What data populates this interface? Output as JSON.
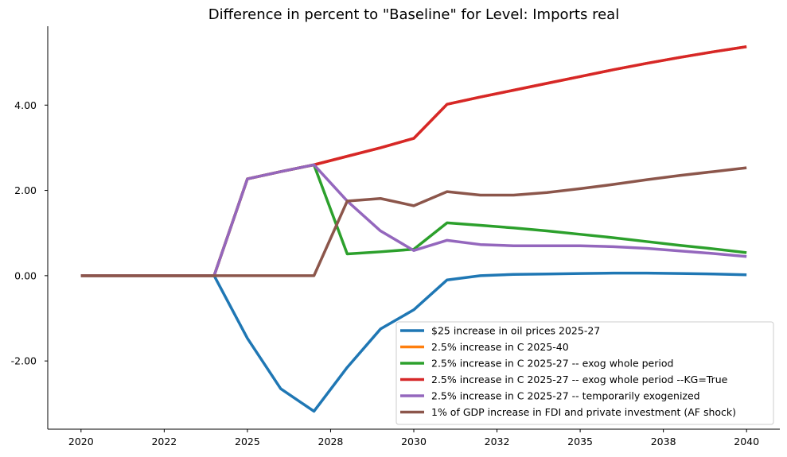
{
  "chart_data": {
    "type": "line",
    "title": "Difference in percent to \"Baseline\" for Level: Imports real",
    "xlabel": "",
    "ylabel": "",
    "x": [
      2020,
      2021,
      2022,
      2023,
      2024,
      2025,
      2026,
      2027,
      2028,
      2029,
      2030,
      2031,
      2032,
      2033,
      2034,
      2035,
      2036,
      2037,
      2038,
      2039,
      2040
    ],
    "xlim": [
      2019,
      2041
    ],
    "ylim": [
      -3.6,
      5.85
    ],
    "x_ticks": [
      {
        "value": 2020,
        "label": "2020"
      },
      {
        "value": 2022.5,
        "label": "2022"
      },
      {
        "value": 2025,
        "label": "2025"
      },
      {
        "value": 2027.5,
        "label": "2028"
      },
      {
        "value": 2030,
        "label": "2030"
      },
      {
        "value": 2032.5,
        "label": "2032"
      },
      {
        "value": 2035,
        "label": "2035"
      },
      {
        "value": 2037.5,
        "label": "2038"
      },
      {
        "value": 2040,
        "label": "2040"
      }
    ],
    "y_ticks": [
      {
        "value": -2,
        "label": "-2.00"
      },
      {
        "value": 0,
        "label": "0.00"
      },
      {
        "value": 2,
        "label": "2.00"
      },
      {
        "value": 4,
        "label": "4.00"
      }
    ],
    "grid": false,
    "legend_position": "bottom-right",
    "series": [
      {
        "name": "$25 increase in oil prices 2025-27",
        "color": "#1f77b4",
        "values": [
          0,
          0,
          0,
          0,
          0,
          -1.47,
          -2.65,
          -3.18,
          -2.15,
          -1.25,
          -0.8,
          -0.1,
          0,
          0.03,
          0.04,
          0.05,
          0.06,
          0.06,
          0.05,
          0.04,
          0.02
        ]
      },
      {
        "name": "2.5% increase in C 2025-40",
        "color": "#ff7f0e",
        "values": [
          0,
          0,
          0,
          0,
          0,
          2.27,
          2.44,
          2.6,
          2.8,
          3.0,
          3.22,
          4.02,
          4.19,
          4.35,
          4.51,
          4.67,
          4.83,
          4.98,
          5.12,
          5.25,
          5.37
        ]
      },
      {
        "name": "2.5% increase in C 2025-27 -- exog whole period",
        "color": "#2ca02c",
        "values": [
          0,
          0,
          0,
          0,
          0,
          2.27,
          2.44,
          2.6,
          0.51,
          0.56,
          0.62,
          1.24,
          1.18,
          1.12,
          1.05,
          0.97,
          0.89,
          0.8,
          0.71,
          0.63,
          0.54
        ]
      },
      {
        "name": "2.5% increase in C 2025-27 -- exog whole period --KG=True",
        "color": "#d62728",
        "values": [
          0,
          0,
          0,
          0,
          0,
          2.27,
          2.44,
          2.6,
          2.8,
          3.0,
          3.22,
          4.02,
          4.19,
          4.35,
          4.51,
          4.67,
          4.83,
          4.98,
          5.12,
          5.25,
          5.37
        ]
      },
      {
        "name": "2.5% increase in C 2025-27 -- temporarily exogenized",
        "color": "#9467bd",
        "values": [
          0,
          0,
          0,
          0,
          0,
          2.27,
          2.44,
          2.6,
          1.75,
          1.05,
          0.59,
          0.83,
          0.73,
          0.7,
          0.7,
          0.7,
          0.68,
          0.64,
          0.58,
          0.52,
          0.45
        ]
      },
      {
        "name": "1% of GDP increase in FDI and private investment (AF shock)",
        "color": "#8c564b",
        "values": [
          0,
          0,
          0,
          0,
          0,
          0,
          0,
          0,
          1.75,
          1.81,
          1.64,
          1.97,
          1.89,
          1.89,
          1.95,
          2.04,
          2.14,
          2.25,
          2.35,
          2.44,
          2.53
        ]
      }
    ]
  }
}
